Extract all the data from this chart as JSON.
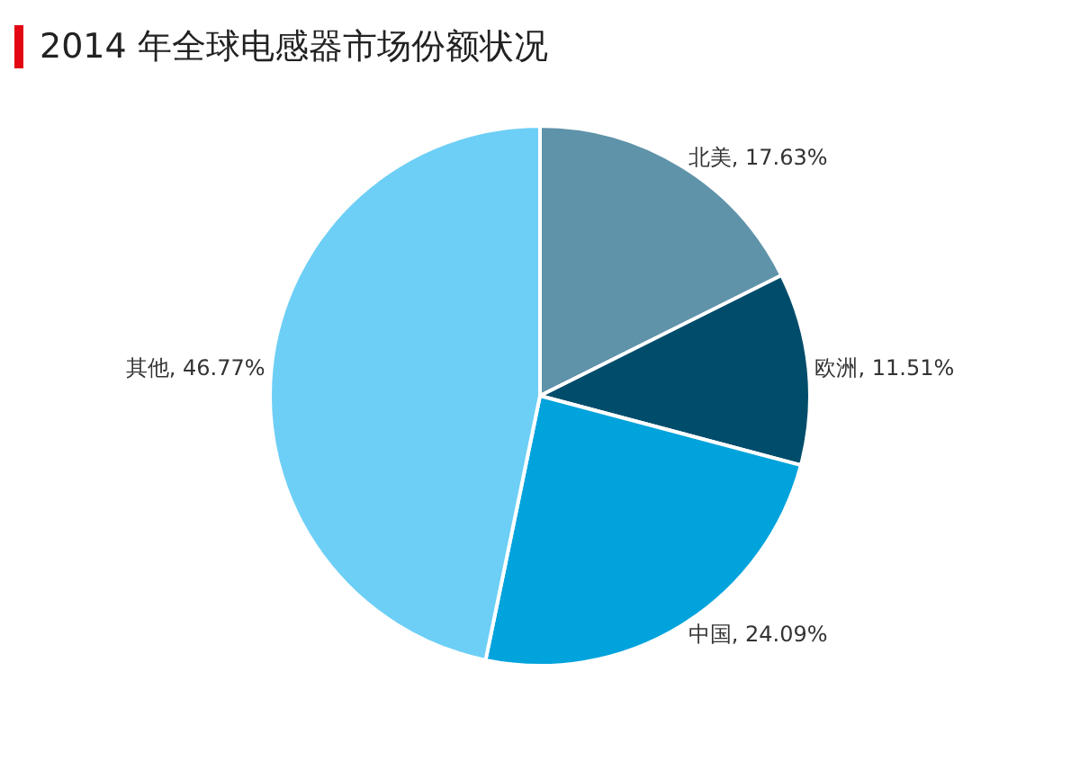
{
  "chart_data": {
    "type": "pie",
    "title": "2014 年全球电感器市场份额状况",
    "categories": [
      "北美",
      "欧洲",
      "中国",
      "其他"
    ],
    "values": [
      17.63,
      11.51,
      24.09,
      46.77
    ],
    "value_labels": [
      "17.63%",
      "11.51%",
      "24.09%",
      "46.77%"
    ],
    "colors": [
      "#5f93aa",
      "#004d6b",
      "#00a3dc",
      "#6dcff6"
    ],
    "legend": false
  }
}
